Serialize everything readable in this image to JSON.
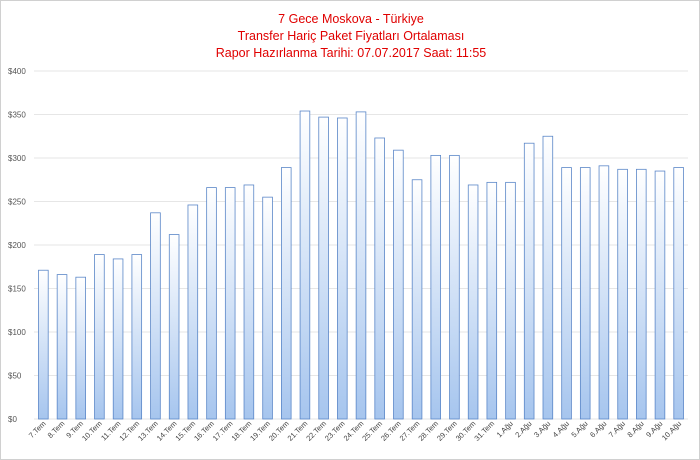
{
  "chart_data": {
    "type": "bar",
    "title": "7 Gece Moskova - Türkiye",
    "subtitle": "Transfer Hariç Paket Fiyatları Ortalaması",
    "report_line": "Rapor Hazırlanma Tarihi: 07.07.2017 Saat: 11:55",
    "xlabel": "",
    "ylabel": "",
    "ylim": [
      0,
      400
    ],
    "ytick_values": [
      0,
      50,
      100,
      150,
      200,
      250,
      300,
      350,
      400
    ],
    "ytick_labels": [
      "$0",
      "$50",
      "$100",
      "$150",
      "$200",
      "$250",
      "$300",
      "$350",
      "$400"
    ],
    "grid": true,
    "legend": "none",
    "categories": [
      "7.Tem",
      "8.Tem",
      "9.Tem",
      "10.Tem",
      "11.Tem",
      "12.Tem",
      "13.Tem",
      "14.Tem",
      "15.Tem",
      "16.Tem",
      "17.Tem",
      "18.Tem",
      "19.Tem",
      "20.Tem",
      "21.Tem",
      "22.Tem",
      "23.Tem",
      "24.Tem",
      "25.Tem",
      "26.Tem",
      "27.Tem",
      "28.Tem",
      "29.Tem",
      "30.Tem",
      "31.Tem",
      "1.Ağu",
      "2.Ağu",
      "3.Ağu",
      "4.Ağu",
      "5.Ağu",
      "6.Ağu",
      "7.Ağu",
      "8.Ağu",
      "9.Ağu",
      "10.Ağu"
    ],
    "values": [
      171,
      166,
      163,
      189,
      184,
      189,
      237,
      212,
      246,
      266,
      266,
      269,
      255,
      289,
      354,
      347,
      346,
      353,
      323,
      309,
      275,
      303,
      303,
      269,
      272,
      272,
      317,
      325,
      289,
      289,
      291,
      287,
      287,
      285,
      289
    ],
    "colors": {
      "bar_top": "#ffffff",
      "bar_bottom": "#a6c5ee",
      "bar_border": "#5b87c8",
      "grid": "#e6e6e6",
      "title": "#e00000"
    }
  }
}
